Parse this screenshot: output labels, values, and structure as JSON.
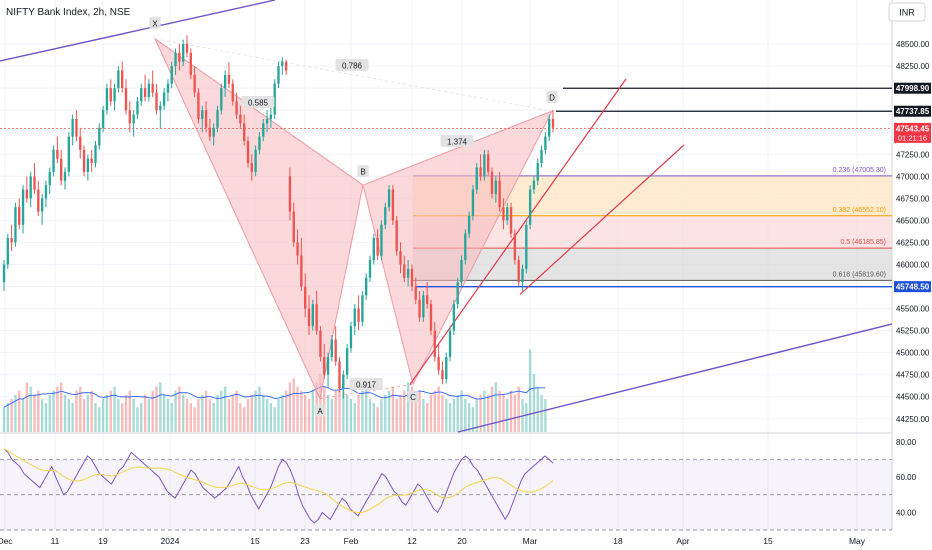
{
  "header": {
    "symbol_title": "NIFTY Bank Index, 2h, NSE",
    "currency": "INR"
  },
  "colors": {
    "up": "#26a69a",
    "down": "#ef5350",
    "pattern_fill": "#f7b9bd",
    "wedge": "#e23a4a",
    "channel": "#6f52c4",
    "volume_ma": "#2962ff",
    "rsi_line": "#7e57c2",
    "rsi_ma": "#f5d447",
    "fib_0236": "#7e57c2",
    "fib_0382": "#f59c00",
    "fib_05": "#e04a4a",
    "fib_0618": "#555555",
    "support": "#1e4fd8"
  },
  "chart_data": [
    {
      "type": "candlestick",
      "title": "NIFTY Bank Index, 2h, NSE",
      "ylim": [
        44100,
        48750
      ],
      "y_ticks": [
        44250,
        44500,
        44750,
        45000,
        45250,
        45500,
        45750,
        46000,
        46250,
        46500,
        46750,
        47000,
        47250,
        47500,
        47750,
        48000,
        48250,
        48500
      ],
      "y_tick_labels": [
        "44250.00",
        "44500.00",
        "44750.00",
        "45000.00",
        "45250.00",
        "45500.00",
        "45750.00",
        "46000.00",
        "46250.00",
        "46500.00",
        "46750.00",
        "47000.00",
        "47250.00",
        "47500.00",
        "47750.00",
        "48000.00",
        "48250.00",
        "48500.00"
      ],
      "x_tick_labels": [
        "Dec",
        "11",
        "19",
        "2024",
        "15",
        "23",
        "Feb",
        "12",
        "20",
        "Mar",
        "18",
        "Apr",
        "15",
        "May"
      ],
      "price_tags": [
        {
          "label": "47998.90",
          "value": 47998.9,
          "style": "black"
        },
        {
          "label": "47737.85",
          "value": 47737.85,
          "style": "black"
        },
        {
          "label": "47543.45",
          "value": 47543.45,
          "style": "red",
          "sub": "01:21:16"
        },
        {
          "label": "45748.50",
          "value": 45748.5,
          "style": "blue"
        }
      ],
      "pattern_points": [
        {
          "label": "X",
          "value": 48560
        },
        {
          "label": "A",
          "value": 44480
        },
        {
          "label": "B",
          "value": 46900
        },
        {
          "label": "C",
          "value": 44640
        },
        {
          "label": "D",
          "value": 47740
        }
      ],
      "ratio_labels": [
        "0.786",
        "0.585",
        "0.917",
        "1.374"
      ],
      "fib_levels": [
        {
          "ratio": 0.236,
          "price": 47005.3,
          "label": "0.236 (47005.30)"
        },
        {
          "ratio": 0.382,
          "price": 46552.1,
          "label": "0.382 (46552.10)"
        },
        {
          "ratio": 0.5,
          "price": 46185.85,
          "label": "0.5 (46185.85)"
        },
        {
          "ratio": 0.618,
          "price": 45819.6,
          "label": "0.618 (45819.60)"
        }
      ],
      "candles": [
        [
          45800,
          46050,
          45700,
          46000
        ],
        [
          46000,
          46350,
          45950,
          46300
        ],
        [
          46300,
          46450,
          46150,
          46250
        ],
        [
          46250,
          46700,
          46200,
          46650
        ],
        [
          46650,
          46750,
          46400,
          46450
        ],
        [
          46450,
          46900,
          46350,
          46850
        ],
        [
          46850,
          47000,
          46700,
          46750
        ],
        [
          46750,
          47050,
          46650,
          47000
        ],
        [
          47000,
          47150,
          46800,
          46850
        ],
        [
          46850,
          46950,
          46550,
          46600
        ],
        [
          46600,
          46800,
          46450,
          46750
        ],
        [
          46750,
          46950,
          46650,
          46900
        ],
        [
          46900,
          47100,
          46800,
          47050
        ],
        [
          47050,
          47350,
          47000,
          47300
        ],
        [
          47300,
          47450,
          47150,
          47200
        ],
        [
          47200,
          47300,
          46900,
          46950
        ],
        [
          46950,
          47100,
          46850,
          47050
        ],
        [
          47050,
          47500,
          47000,
          47450
        ],
        [
          47450,
          47700,
          47350,
          47650
        ],
        [
          47650,
          47750,
          47400,
          47450
        ],
        [
          47450,
          47550,
          47200,
          47300
        ],
        [
          47300,
          47350,
          47000,
          47050
        ],
        [
          47050,
          47250,
          46950,
          47200
        ],
        [
          47200,
          47300,
          47050,
          47150
        ],
        [
          47150,
          47400,
          47100,
          47350
        ],
        [
          47350,
          47600,
          47300,
          47550
        ],
        [
          47550,
          47800,
          47500,
          47750
        ],
        [
          47750,
          48050,
          47700,
          48000
        ],
        [
          48000,
          48100,
          47800,
          47850
        ],
        [
          47850,
          48050,
          47750,
          48000
        ],
        [
          48000,
          48250,
          47950,
          48200
        ],
        [
          48200,
          48300,
          47950,
          48000
        ],
        [
          48000,
          48100,
          47700,
          47750
        ],
        [
          47750,
          47850,
          47500,
          47600
        ],
        [
          47600,
          47750,
          47450,
          47700
        ],
        [
          47700,
          47900,
          47650,
          47850
        ],
        [
          47850,
          48050,
          47800,
          48000
        ],
        [
          48000,
          48150,
          47850,
          47900
        ],
        [
          47900,
          48100,
          47850,
          48050
        ],
        [
          48050,
          48200,
          47900,
          47950
        ],
        [
          47950,
          48050,
          47700,
          47750
        ],
        [
          47750,
          47850,
          47550,
          47800
        ],
        [
          47800,
          48000,
          47750,
          47950
        ],
        [
          47950,
          48100,
          47850,
          48050
        ],
        [
          48050,
          48300,
          48000,
          48250
        ],
        [
          48250,
          48450,
          48150,
          48400
        ],
        [
          48400,
          48500,
          48200,
          48300
        ],
        [
          48300,
          48550,
          48250,
          48500
        ],
        [
          48500,
          48600,
          48350,
          48400
        ],
        [
          48400,
          48450,
          48100,
          48150
        ],
        [
          48150,
          48250,
          47900,
          47950
        ],
        [
          47950,
          48000,
          47600,
          47650
        ],
        [
          47650,
          47800,
          47500,
          47750
        ],
        [
          47750,
          47850,
          47500,
          47550
        ],
        [
          47550,
          47650,
          47400,
          47450
        ],
        [
          47450,
          47600,
          47350,
          47550
        ],
        [
          47550,
          47800,
          47500,
          47750
        ],
        [
          47750,
          48050,
          47700,
          48000
        ],
        [
          48000,
          48200,
          47900,
          48150
        ],
        [
          48150,
          48300,
          48000,
          48050
        ],
        [
          48050,
          48100,
          47800,
          47850
        ],
        [
          47850,
          47950,
          47650,
          47700
        ],
        [
          47700,
          47800,
          47550,
          47600
        ],
        [
          47600,
          47700,
          47350,
          47400
        ],
        [
          47400,
          47450,
          47100,
          47150
        ],
        [
          47150,
          47250,
          46950,
          47050
        ],
        [
          47050,
          47350,
          47000,
          47300
        ],
        [
          47300,
          47500,
          47250,
          47450
        ],
        [
          47450,
          47650,
          47400,
          47600
        ],
        [
          47600,
          47750,
          47500,
          47650
        ],
        [
          47650,
          47800,
          47550,
          47700
        ],
        [
          47700,
          48100,
          47650,
          48050
        ],
        [
          48050,
          48300,
          48000,
          48250
        ],
        [
          48250,
          48350,
          48150,
          48300
        ],
        [
          48300,
          48320,
          48150,
          48200
        ],
        [
          47000,
          47100,
          46500,
          46600
        ],
        [
          46600,
          46700,
          46200,
          46250
        ],
        [
          46250,
          46400,
          46000,
          46100
        ],
        [
          46100,
          46300,
          45700,
          45750
        ],
        [
          45750,
          45900,
          45400,
          45500
        ],
        [
          45500,
          45650,
          45200,
          45300
        ],
        [
          45300,
          45600,
          45250,
          45550
        ],
        [
          45550,
          45700,
          45200,
          45250
        ],
        [
          45250,
          45300,
          44900,
          44950
        ],
        [
          44950,
          45100,
          44700,
          44750
        ],
        [
          44750,
          45000,
          44600,
          44950
        ],
        [
          44950,
          45200,
          44900,
          45150
        ],
        [
          45150,
          45300,
          44850,
          44900
        ],
        [
          44900,
          44950,
          44550,
          44600
        ],
        [
          44600,
          44800,
          44480,
          44750
        ],
        [
          44750,
          45100,
          44700,
          45050
        ],
        [
          45050,
          45350,
          45000,
          45300
        ],
        [
          45300,
          45550,
          45200,
          45500
        ],
        [
          45500,
          45650,
          45250,
          45350
        ],
        [
          45350,
          45700,
          45300,
          45650
        ],
        [
          45650,
          45900,
          45600,
          45850
        ],
        [
          45850,
          46100,
          45800,
          46050
        ],
        [
          46050,
          46350,
          46000,
          46300
        ],
        [
          46300,
          46400,
          46050,
          46100
        ],
        [
          46100,
          46500,
          46050,
          46450
        ],
        [
          46450,
          46700,
          46400,
          46650
        ],
        [
          46650,
          46900,
          46600,
          46850
        ],
        [
          46850,
          46900,
          46450,
          46500
        ],
        [
          46500,
          46550,
          46100,
          46150
        ],
        [
          46150,
          46250,
          45900,
          46000
        ],
        [
          46000,
          46100,
          45800,
          45850
        ],
        [
          45850,
          46050,
          45750,
          45950
        ],
        [
          45950,
          46000,
          45700,
          45750
        ],
        [
          45750,
          45850,
          45550,
          45600
        ],
        [
          45600,
          45700,
          45350,
          45400
        ],
        [
          45400,
          45700,
          45350,
          45650
        ],
        [
          45650,
          45800,
          45500,
          45550
        ],
        [
          45550,
          45600,
          45200,
          45250
        ],
        [
          45250,
          45350,
          44900,
          44950
        ],
        [
          44950,
          45100,
          44750,
          44800
        ],
        [
          44800,
          44900,
          44640,
          44700
        ],
        [
          44700,
          45000,
          44650,
          44950
        ],
        [
          44950,
          45300,
          44900,
          45250
        ],
        [
          45250,
          45600,
          45200,
          45550
        ],
        [
          45550,
          45850,
          45500,
          45800
        ],
        [
          45800,
          46100,
          45750,
          46050
        ],
        [
          46050,
          46400,
          46000,
          46350
        ],
        [
          46350,
          46600,
          46300,
          46550
        ],
        [
          46550,
          46900,
          46500,
          46850
        ],
        [
          46850,
          47150,
          46800,
          47100
        ],
        [
          47100,
          47250,
          46950,
          47000
        ],
        [
          47000,
          47300,
          46950,
          47250
        ],
        [
          47250,
          47300,
          47000,
          47050
        ],
        [
          47050,
          47100,
          46750,
          46800
        ],
        [
          46800,
          47000,
          46700,
          46950
        ],
        [
          46950,
          47050,
          46600,
          46650
        ],
        [
          46650,
          46750,
          46400,
          46500
        ],
        [
          46500,
          46700,
          46450,
          46650
        ],
        [
          46650,
          46700,
          46300,
          46350
        ],
        [
          46350,
          46400,
          46000,
          46050
        ],
        [
          46050,
          46100,
          45750,
          45800
        ],
        [
          45800,
          46000,
          45700,
          45950
        ],
        [
          45950,
          46500,
          45900,
          46450
        ],
        [
          46450,
          46900,
          46400,
          46850
        ],
        [
          46850,
          47000,
          46800,
          46950
        ],
        [
          46950,
          47200,
          46900,
          47150
        ],
        [
          47150,
          47350,
          47100,
          47300
        ],
        [
          47300,
          47500,
          47250,
          47450
        ],
        [
          47450,
          47700,
          47400,
          47650
        ],
        [
          47650,
          47750,
          47500,
          47550
        ]
      ]
    },
    {
      "type": "bar",
      "title": "Volume",
      "values": [
        0.3,
        0.35,
        0.4,
        0.45,
        0.5,
        0.4,
        0.6,
        0.55,
        0.45,
        0.5,
        0.4,
        0.35,
        0.45,
        0.5,
        0.55,
        0.6,
        0.45,
        0.4,
        0.35,
        0.5,
        0.55,
        0.4,
        0.45,
        0.5,
        0.35,
        0.3,
        0.4,
        0.45,
        0.5,
        0.55,
        0.4,
        0.35,
        0.45,
        0.5,
        0.4,
        0.3,
        0.35,
        0.45,
        0.4,
        0.5,
        0.55,
        0.6,
        0.45,
        0.4,
        0.35,
        0.5,
        0.55,
        0.45,
        0.4,
        0.35,
        0.3,
        0.4,
        0.45,
        0.5,
        0.4,
        0.35,
        0.45,
        0.5,
        0.55,
        0.4,
        0.45,
        0.5,
        0.35,
        0.3,
        0.4,
        0.45,
        0.5,
        0.55,
        0.45,
        0.4,
        0.35,
        0.3,
        0.4,
        0.45,
        0.5,
        0.6,
        0.65,
        0.55,
        0.5,
        0.45,
        0.4,
        0.5,
        0.6,
        0.7,
        0.55,
        0.45,
        0.4,
        0.5,
        0.55,
        0.6,
        0.45,
        0.4,
        0.35,
        0.45,
        0.5,
        0.55,
        0.4,
        0.35,
        0.3,
        0.4,
        0.45,
        0.5,
        0.55,
        0.4,
        0.45,
        0.5,
        0.6,
        0.55,
        0.45,
        0.5,
        0.4,
        0.35,
        0.45,
        0.5,
        0.55,
        0.45,
        0.4,
        0.35,
        0.4,
        0.45,
        0.5,
        0.4,
        0.35,
        0.3,
        0.4,
        0.45,
        0.5,
        0.45,
        0.55,
        0.6,
        0.5,
        0.45,
        0.4,
        0.5,
        0.45,
        0.55,
        0.4,
        0.35,
        1.0,
        0.7,
        0.55,
        0.45,
        0.4
      ]
    },
    {
      "type": "line",
      "title": "RSI",
      "ylim": [
        30,
        85
      ],
      "y_ticks": [
        40,
        60,
        80
      ],
      "y_tick_labels": [
        "40.00",
        "60.00",
        "80.00"
      ],
      "bands": [
        70,
        50,
        30
      ],
      "values": [
        76,
        74,
        70,
        68,
        66,
        62,
        60,
        58,
        56,
        54,
        58,
        62,
        66,
        60,
        55,
        50,
        52,
        56,
        60,
        64,
        68,
        72,
        70,
        66,
        62,
        60,
        58,
        56,
        60,
        64,
        66,
        70,
        74,
        72,
        70,
        68,
        66,
        64,
        62,
        60,
        56,
        52,
        50,
        48,
        52,
        56,
        60,
        64,
        62,
        58,
        54,
        52,
        50,
        48,
        50,
        52,
        54,
        58,
        62,
        66,
        60,
        56,
        50,
        46,
        42,
        46,
        50,
        54,
        60,
        66,
        70,
        68,
        64,
        58,
        50,
        44,
        40,
        36,
        34,
        36,
        40,
        38,
        36,
        40,
        44,
        48,
        46,
        42,
        40,
        38,
        42,
        46,
        50,
        54,
        58,
        62,
        60,
        56,
        52,
        50,
        46,
        44,
        48,
        52,
        56,
        54,
        50,
        46,
        42,
        40,
        44,
        50,
        56,
        62,
        66,
        70,
        72,
        70,
        66,
        64,
        60,
        56,
        52,
        48,
        44,
        40,
        36,
        40,
        46,
        52,
        58,
        62,
        64,
        66,
        68,
        70,
        72,
        70,
        68
      ]
    }
  ]
}
